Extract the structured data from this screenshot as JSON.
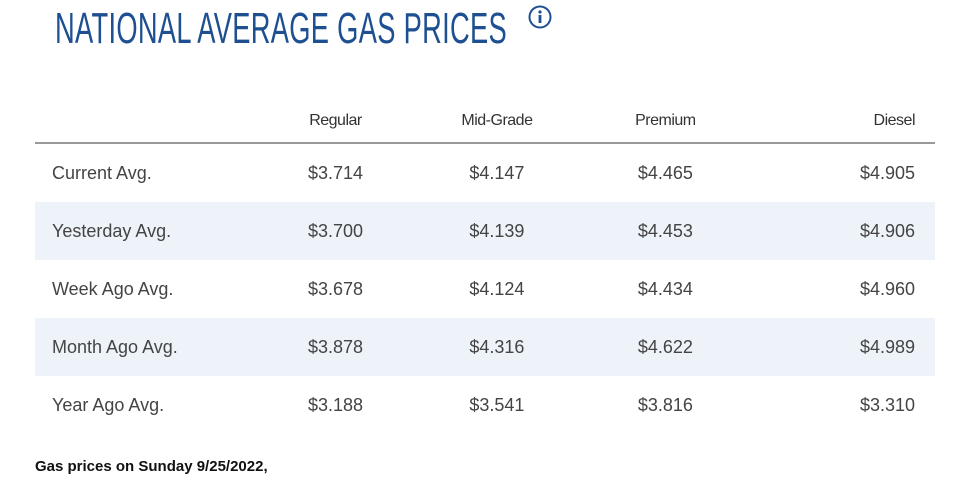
{
  "header": {
    "title": "NATIONAL AVERAGE GAS PRICES"
  },
  "table": {
    "columns": [
      "Regular",
      "Mid-Grade",
      "Premium",
      "Diesel"
    ],
    "rows": [
      [
        "Current Avg.",
        "$3.714",
        "$4.147",
        "$4.465",
        "$4.905"
      ],
      [
        "Yesterday Avg.",
        "$3.700",
        "$4.139",
        "$4.453",
        "$4.906"
      ],
      [
        "Week Ago Avg.",
        "$3.678",
        "$4.124",
        "$4.434",
        "$4.960"
      ],
      [
        "Month Ago Avg.",
        "$3.878",
        "$4.316",
        "$4.622",
        "$4.989"
      ],
      [
        "Year Ago Avg.",
        "$3.188",
        "$3.541",
        "$3.816",
        "$3.310"
      ]
    ]
  },
  "footnote": "Gas prices on Sunday 9/25/2022,"
}
